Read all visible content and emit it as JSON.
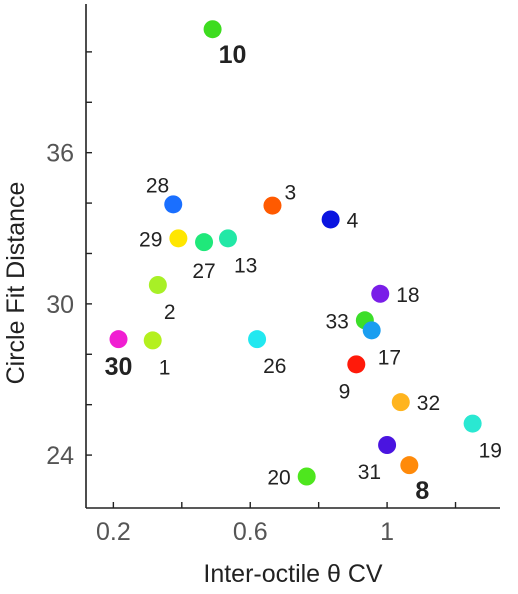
{
  "chart_data": {
    "type": "scatter",
    "xlabel": "Inter-octile θ CV",
    "ylabel": "Circle Fit Distance",
    "xlim": [
      0.12,
      1.33
    ],
    "ylim": [
      21.9,
      41.9
    ],
    "xticks": [
      0.2,
      0.4,
      0.6,
      0.8,
      1.0,
      1.2
    ],
    "xtick_labels": [
      "0.2",
      "",
      "0.6",
      "",
      "1",
      ""
    ],
    "yticks": [
      24,
      26,
      28,
      30,
      32,
      34,
      36,
      38,
      40
    ],
    "ytick_labels": [
      "24",
      "",
      "",
      "30",
      "",
      "",
      "36",
      "",
      ""
    ],
    "grid": false,
    "points": [
      {
        "label": "10",
        "x": 0.49,
        "y": 40.9,
        "color": "#3ddc1f",
        "bold": true,
        "label_pos": "below-right"
      },
      {
        "label": "3",
        "x": 0.665,
        "y": 33.9,
        "color": "#ff5a00",
        "bold": false,
        "label_pos": "above-right"
      },
      {
        "label": "28",
        "x": 0.375,
        "y": 33.95,
        "color": "#1a6fff",
        "bold": false,
        "label_pos": "above-left"
      },
      {
        "label": "4",
        "x": 0.835,
        "y": 33.35,
        "color": "#0a14e0",
        "bold": false,
        "label_pos": "right"
      },
      {
        "label": "29",
        "x": 0.39,
        "y": 32.6,
        "color": "#ffe600",
        "bold": false,
        "label_pos": "left"
      },
      {
        "label": "27",
        "x": 0.465,
        "y": 32.45,
        "color": "#1fe87a",
        "bold": false,
        "label_pos": "below"
      },
      {
        "label": "13",
        "x": 0.535,
        "y": 32.6,
        "color": "#22e8a6",
        "bold": false,
        "label_pos": "below-right"
      },
      {
        "label": "2",
        "x": 0.33,
        "y": 30.75,
        "color": "#a8f026",
        "bold": false,
        "label_pos": "below-right"
      },
      {
        "label": "18",
        "x": 0.98,
        "y": 30.4,
        "color": "#7a1ee8",
        "bold": false,
        "label_pos": "right"
      },
      {
        "label": "33",
        "x": 0.935,
        "y": 29.35,
        "color": "#3cde2a",
        "bold": false,
        "label_pos": "left"
      },
      {
        "label": "17",
        "x": 0.955,
        "y": 28.95,
        "color": "#1a9ef0",
        "bold": false,
        "label_pos": "below-right"
      },
      {
        "label": "30",
        "x": 0.215,
        "y": 28.6,
        "color": "#f01ed2",
        "bold": true,
        "label_pos": "below"
      },
      {
        "label": "1",
        "x": 0.315,
        "y": 28.55,
        "color": "#b4f01e",
        "bold": false,
        "label_pos": "below-right"
      },
      {
        "label": "26",
        "x": 0.62,
        "y": 28.6,
        "color": "#22e8f0",
        "bold": false,
        "label_pos": "below-right"
      },
      {
        "label": "9",
        "x": 0.91,
        "y": 27.6,
        "color": "#ff1a0a",
        "bold": false,
        "label_pos": "below-left"
      },
      {
        "label": "32",
        "x": 1.04,
        "y": 26.1,
        "color": "#ffb41e",
        "bold": false,
        "label_pos": "right"
      },
      {
        "label": "19",
        "x": 1.25,
        "y": 25.25,
        "color": "#2ae8d2",
        "bold": false,
        "label_pos": "below-right"
      },
      {
        "label": "31",
        "x": 1.0,
        "y": 24.4,
        "color": "#4a14e0",
        "bold": false,
        "label_pos": "below-left"
      },
      {
        "label": "8",
        "x": 1.065,
        "y": 23.6,
        "color": "#ff8a0a",
        "bold": true,
        "label_pos": "below-right"
      },
      {
        "label": "20",
        "x": 0.765,
        "y": 23.15,
        "color": "#4ee61e",
        "bold": false,
        "label_pos": "left"
      }
    ]
  }
}
